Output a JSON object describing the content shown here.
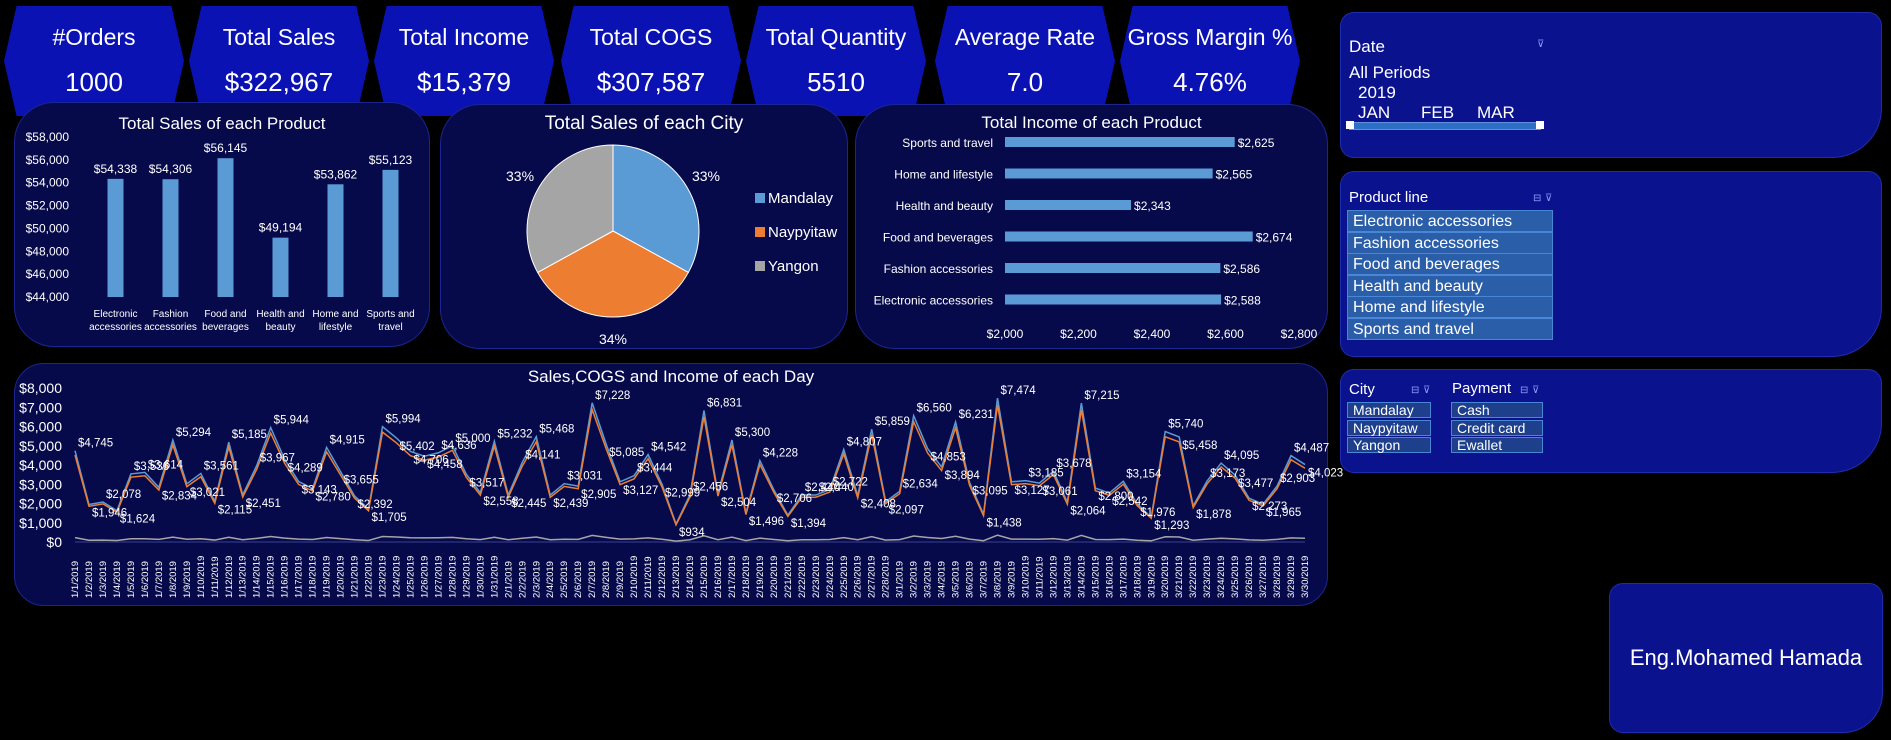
{
  "kpis": [
    {
      "label": "#Orders",
      "value": "1000"
    },
    {
      "label": "Total Sales",
      "value": "$322,967"
    },
    {
      "label": "Total Income",
      "value": "$15,379"
    },
    {
      "label": "Total COGS",
      "value": "$307,587"
    },
    {
      "label": "Total Quantity",
      "value": "5510"
    },
    {
      "label": "Average Rate",
      "value": "7.0"
    },
    {
      "label": "Gross Margin %",
      "value": "4.76%"
    }
  ],
  "date_slicer": {
    "title": "Date",
    "period": "All Periods",
    "year": "2019",
    "months": [
      "JAN",
      "FEB",
      "MAR"
    ]
  },
  "product_slicer": {
    "title": "Product line",
    "items": [
      "Electronic accessories",
      "Fashion accessories",
      "Food and beverages",
      "Health and beauty",
      "Home and lifestyle",
      "Sports and travel"
    ]
  },
  "city_slicer": {
    "title": "City",
    "items": [
      "Mandalay",
      "Naypyitaw",
      "Yangon"
    ]
  },
  "payment_slicer": {
    "title": "Payment",
    "items": [
      "Cash",
      "Credit card",
      "Ewallet"
    ]
  },
  "signature": "Eng.Mohamed Hamada",
  "colors": {
    "bar": "#5b9bd5",
    "mandalay": "#5b9bd5",
    "naypyitaw": "#ed7d31",
    "yangon": "#a5a5a5",
    "kpi": "#0b12b4",
    "panel": "#070a4a"
  },
  "chart_data": [
    {
      "type": "bar",
      "title": "Total Sales of each Product",
      "categories": [
        "Electronic accessories",
        "Fashion accessories",
        "Food and beverages",
        "Health and beauty",
        "Home and lifestyle",
        "Sports and travel"
      ],
      "category_lines": [
        [
          "Electronic",
          "accessories"
        ],
        [
          "Fashion",
          "accessories"
        ],
        [
          "Food and",
          "beverages"
        ],
        [
          "Health and",
          "beauty"
        ],
        [
          "Home and",
          "lifestyle"
        ],
        [
          "Sports and",
          "travel"
        ]
      ],
      "values": [
        54338,
        54306,
        56145,
        49194,
        53862,
        55123
      ],
      "value_labels": [
        "$54,338",
        "$54,306",
        "$56,145",
        "$49,194",
        "$53,862",
        "$55,123"
      ],
      "ylim": [
        44000,
        58000
      ],
      "yticks": [
        "$44,000",
        "$46,000",
        "$48,000",
        "$50,000",
        "$52,000",
        "$54,000",
        "$56,000",
        "$58,000"
      ],
      "grid": false
    },
    {
      "type": "pie",
      "title": "Total Sales of each City",
      "categories": [
        "Mandalay",
        "Naypyitaw",
        "Yangon"
      ],
      "values": [
        33,
        34,
        33
      ],
      "value_labels": [
        "33%",
        "34%",
        "33%"
      ],
      "legend": "right"
    },
    {
      "type": "bar",
      "orientation": "horizontal",
      "title": "Total Income of each Product",
      "categories": [
        "Sports and travel",
        "Home and lifestyle",
        "Health and beauty",
        "Food and beverages",
        "Fashion accessories",
        "Electronic accessories"
      ],
      "values": [
        2625,
        2565,
        2343,
        2674,
        2586,
        2588
      ],
      "value_labels": [
        "$2,625",
        "$2,565",
        "$2,343",
        "$2,674",
        "$2,586",
        "$2,588"
      ],
      "xlim": [
        2000,
        2800
      ],
      "xticks": [
        "$2,000",
        "$2,200",
        "$2,400",
        "$2,600",
        "$2,800"
      ],
      "grid": false
    },
    {
      "type": "line",
      "title": "Sales,COGS and Income of each Day",
      "x": [
        "1/1/2019",
        "1/2/2019",
        "1/3/2019",
        "1/4/2019",
        "1/5/2019",
        "1/6/2019",
        "1/7/2019",
        "1/8/2019",
        "1/9/2019",
        "1/10/2019",
        "1/11/2019",
        "1/12/2019",
        "1/13/2019",
        "1/14/2019",
        "1/15/2019",
        "1/16/2019",
        "1/17/2019",
        "1/18/2019",
        "1/19/2019",
        "1/20/2019",
        "1/21/2019",
        "1/22/2019",
        "1/23/2019",
        "1/24/2019",
        "1/25/2019",
        "1/26/2019",
        "1/27/2019",
        "1/28/2019",
        "1/29/2019",
        "1/30/2019",
        "1/31/2019",
        "2/1/2019",
        "2/2/2019",
        "2/3/2019",
        "2/4/2019",
        "2/5/2019",
        "2/6/2019",
        "2/7/2019",
        "2/8/2019",
        "2/9/2019",
        "2/10/2019",
        "2/11/2019",
        "2/12/2019",
        "2/13/2019",
        "2/14/2019",
        "2/15/2019",
        "2/16/2019",
        "2/17/2019",
        "2/18/2019",
        "2/19/2019",
        "2/20/2019",
        "2/21/2019",
        "2/22/2019",
        "2/23/2019",
        "2/24/2019",
        "2/25/2019",
        "2/26/2019",
        "2/27/2019",
        "2/28/2019",
        "3/1/2019",
        "3/2/2019",
        "3/3/2019",
        "3/4/2019",
        "3/5/2019",
        "3/6/2019",
        "3/7/2019",
        "3/8/2019",
        "3/9/2019",
        "3/10/2019",
        "3/11/2019",
        "3/12/2019",
        "3/13/2019",
        "3/14/2019",
        "3/15/2019",
        "3/16/2019",
        "3/17/2019",
        "3/18/2019",
        "3/19/2019",
        "3/20/2019",
        "3/21/2019",
        "3/22/2019",
        "3/23/2019",
        "3/24/2019",
        "3/25/2019",
        "3/26/2019",
        "3/27/2019",
        "3/28/2019",
        "3/29/2019",
        "3/30/2019"
      ],
      "series": [
        {
          "values": [
            4745,
            1946,
            2078,
            1624,
            3536,
            3614,
            2834,
            5294,
            3021,
            3561,
            2115,
            5185,
            2451,
            3967,
            5944,
            4289,
            3143,
            2780,
            4915,
            3655,
            2392,
            1705,
            5994,
            5402,
            4706,
            4458,
            4636,
            5000,
            3517,
            2558,
            5232,
            2445,
            4141,
            5468,
            2439,
            3031,
            2905,
            7228,
            5085,
            3127,
            3444,
            4542,
            2999,
            934,
            2456,
            6831,
            2504,
            5300,
            1496,
            4228,
            2706,
            1394,
            2440,
            2440,
            2722,
            4807,
            2408,
            5859,
            2097,
            2634,
            6560,
            4853,
            3894,
            6231,
            3095,
            1438,
            7474,
            3127,
            3185,
            3061,
            3678,
            2064,
            7215,
            2800,
            2542,
            3154,
            1976,
            1293,
            5740,
            5458,
            1878,
            3173,
            4095,
            3477,
            2273,
            1965,
            2903,
            4487,
            4023
          ]
        },
        {
          "values": [
            4519,
            1853,
            1979,
            1547,
            3368,
            3442,
            2699,
            5042,
            2877,
            3391,
            2014,
            4938,
            2334,
            3778,
            5661,
            4085,
            2993,
            2648,
            4681,
            3481,
            2278,
            1624,
            5709,
            5145,
            4482,
            4246,
            4415,
            4762,
            3350,
            2436,
            4983,
            2329,
            3944,
            5208,
            2323,
            2887,
            2767,
            6884,
            4843,
            2978,
            3280,
            4326,
            2856,
            890,
            2339,
            6506,
            2385,
            5048,
            1425,
            4027,
            2577,
            1328,
            2324,
            2324,
            2592,
            4578,
            2293,
            5580,
            1997,
            2509,
            6248,
            4622,
            3709,
            5934,
            2948,
            1370,
            7118,
            2978,
            3033,
            2915,
            3503,
            1966,
            6871,
            2667,
            2421,
            3004,
            1882,
            1231,
            5467,
            5198,
            1789,
            3022,
            3900,
            3312,
            2165,
            1871,
            2765,
            4273,
            3831
          ]
        },
        {
          "values": [
            226,
            93,
            99,
            77,
            168,
            172,
            135,
            252,
            144,
            170,
            101,
            247,
            117,
            189,
            283,
            204,
            150,
            132,
            234,
            174,
            114,
            81,
            285,
            257,
            224,
            212,
            221,
            238,
            167,
            122,
            249,
            116,
            197,
            260,
            116,
            144,
            138,
            344,
            242,
            149,
            164,
            216,
            143,
            44,
            117,
            325,
            119,
            252,
            71,
            201,
            129,
            66,
            116,
            116,
            130,
            229,
            115,
            279,
            100,
            125,
            312,
            231,
            185,
            297,
            147,
            68,
            356,
            149,
            152,
            146,
            175,
            98,
            344,
            133,
            121,
            150,
            94,
            62,
            273,
            260,
            89,
            151,
            195,
            165,
            108,
            94,
            138,
            214,
            192
          ]
        }
      ],
      "point_labels": [
        "$4,745",
        "$1,946",
        "$2,078",
        "$1,624",
        "$3,536",
        "$3,614",
        "$2,834",
        "$5,294",
        "$3,021",
        "$3,561",
        "$2,115",
        "$5,185",
        "$2,451",
        "$3,967",
        "$5,944",
        "$4,289",
        "$3,143",
        "$2,780",
        "$4,915",
        "$3,655",
        "$2,392",
        "$1,705",
        "$5,994",
        "$5,402",
        "$4,706",
        "$4,458",
        "$4,636",
        "$5,000",
        "$3,517",
        "$2,558",
        "$5,232",
        "$2,445",
        "$4,141",
        "$5,468",
        "$2,439",
        "$3,031",
        "$2,905",
        "$7,228",
        "$5,085",
        "$3,127",
        "$3,444",
        "$4,542",
        "$2,999",
        "$934",
        "$2,456",
        "$6,831",
        "$2,504",
        "$5,300",
        "$1,496",
        "$4,228",
        "$2,706",
        "$1,394",
        "$2,440",
        "$2,440",
        "$2,722",
        "$4,807",
        "$2,408",
        "$5,859",
        "$2,097",
        "$2,634",
        "$6,560",
        "$4,853",
        "$3,894",
        "$6,231",
        "$3,095",
        "$1,438",
        "$7,474",
        "$3,127",
        "$3,185",
        "$3,061",
        "$3,678",
        "$2,064",
        "$7,215",
        "$2,800",
        "$2,542",
        "$3,154",
        "$1,976",
        "$1,293",
        "$5,740",
        "$5,458",
        "$1,878",
        "$3,173",
        "$4,095",
        "$3,477",
        "$2,273",
        "$1,965",
        "$2,903",
        "$4,487",
        "$4,023"
      ],
      "ylim": [
        0,
        8000
      ],
      "yticks": [
        "$0",
        "$1,000",
        "$2,000",
        "$3,000",
        "$4,000",
        "$5,000",
        "$6,000",
        "$7,000",
        "$8,000"
      ],
      "colors": [
        "#5b9bd5",
        "#ed7d31",
        "#a5a5a5"
      ],
      "grid": false
    }
  ]
}
